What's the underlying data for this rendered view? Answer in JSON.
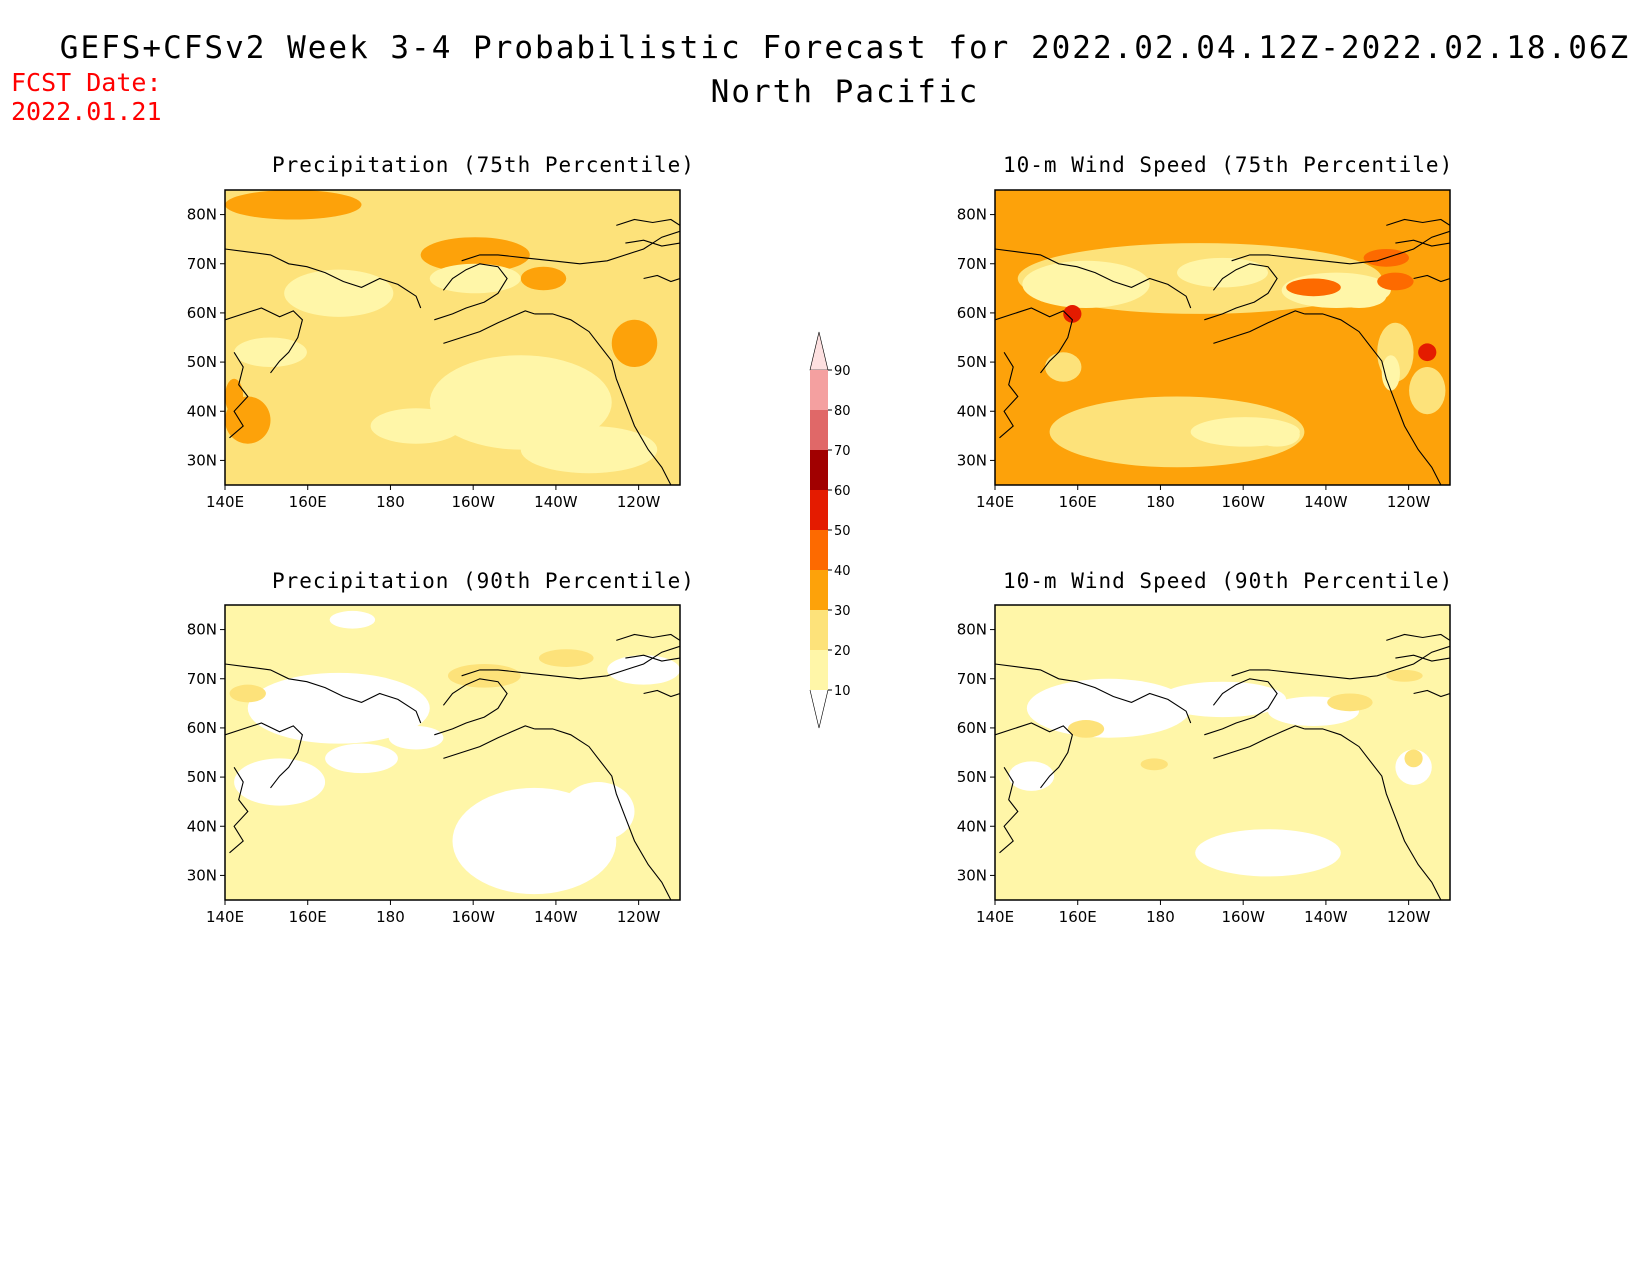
{
  "figure": {
    "title_line1": "GEFS+CFSv2 Week 3-4 Probabilistic Forecast for 2022.02.04.12Z-2022.02.18.06Z",
    "title_line2": "North Pacific",
    "fcst_label": "FCST Date:",
    "fcst_date": "2022.01.21"
  },
  "colors": {
    "c10": "#fff6a8",
    "c20": "#fde27a",
    "c30": "#fda20a",
    "c40": "#fd6a00",
    "c50": "#e41b00",
    "c60": "#a10000",
    "c70": "#e06868",
    "c80": "#f4a0a0",
    "c90": "#fde0e0",
    "coast": "#000000"
  },
  "colorbar": {
    "levels": [
      "10",
      "20",
      "30",
      "40",
      "50",
      "60",
      "70",
      "80",
      "90"
    ],
    "fill_keys": [
      "c10",
      "c20",
      "c30",
      "c40",
      "c50",
      "c60",
      "c70",
      "c80",
      "c90"
    ]
  },
  "axes": {
    "x_ticks": [
      "140E",
      "160E",
      "180",
      "160W",
      "140W",
      "120W"
    ],
    "y_ticks": [
      "80N",
      "70N",
      "60N",
      "50N",
      "40N",
      "30N"
    ]
  },
  "panels": [
    {
      "id": "precip-75",
      "title": "Precipitation (75th Percentile)",
      "dominant": "20-30"
    },
    {
      "id": "wind-75",
      "title": "10-m Wind Speed (75th Percentile)",
      "dominant": "30-40"
    },
    {
      "id": "precip-90",
      "title": "Precipitation (90th Percentile)",
      "dominant": "10-20"
    },
    {
      "id": "wind-90",
      "title": "10-m Wind Speed (90th Percentile)",
      "dominant": "10-20"
    }
  ]
}
